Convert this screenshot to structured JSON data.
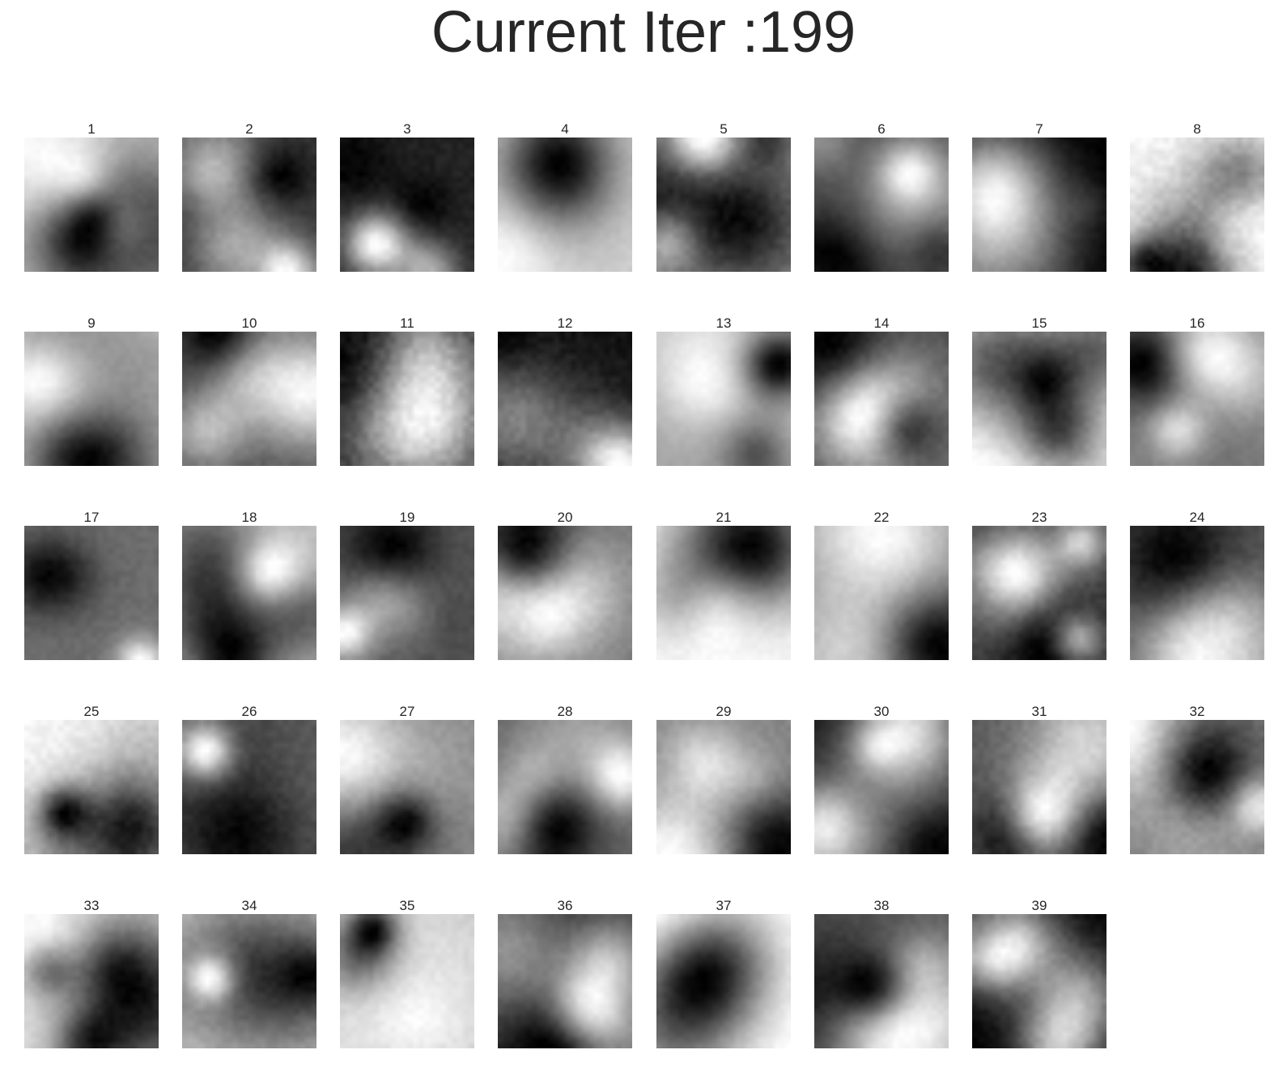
{
  "figure": {
    "title": "Current Iter :199"
  },
  "filters": [
    {
      "label": "1"
    },
    {
      "label": "2"
    },
    {
      "label": "3"
    },
    {
      "label": "4"
    },
    {
      "label": "5"
    },
    {
      "label": "6"
    },
    {
      "label": "7"
    },
    {
      "label": "8"
    },
    {
      "label": "9"
    },
    {
      "label": "10"
    },
    {
      "label": "11"
    },
    {
      "label": "12"
    },
    {
      "label": "13"
    },
    {
      "label": "14"
    },
    {
      "label": "15"
    },
    {
      "label": "16"
    },
    {
      "label": "17"
    },
    {
      "label": "18"
    },
    {
      "label": "19"
    },
    {
      "label": "20"
    },
    {
      "label": "21"
    },
    {
      "label": "22"
    },
    {
      "label": "23"
    },
    {
      "label": "24"
    },
    {
      "label": "25"
    },
    {
      "label": "26"
    },
    {
      "label": "27"
    },
    {
      "label": "28"
    },
    {
      "label": "29"
    },
    {
      "label": "30"
    },
    {
      "label": "31"
    },
    {
      "label": "32"
    },
    {
      "label": "33"
    },
    {
      "label": "34"
    },
    {
      "label": "35"
    },
    {
      "label": "36"
    },
    {
      "label": "37"
    },
    {
      "label": "38"
    },
    {
      "label": "39"
    }
  ],
  "colormap": "gray"
}
